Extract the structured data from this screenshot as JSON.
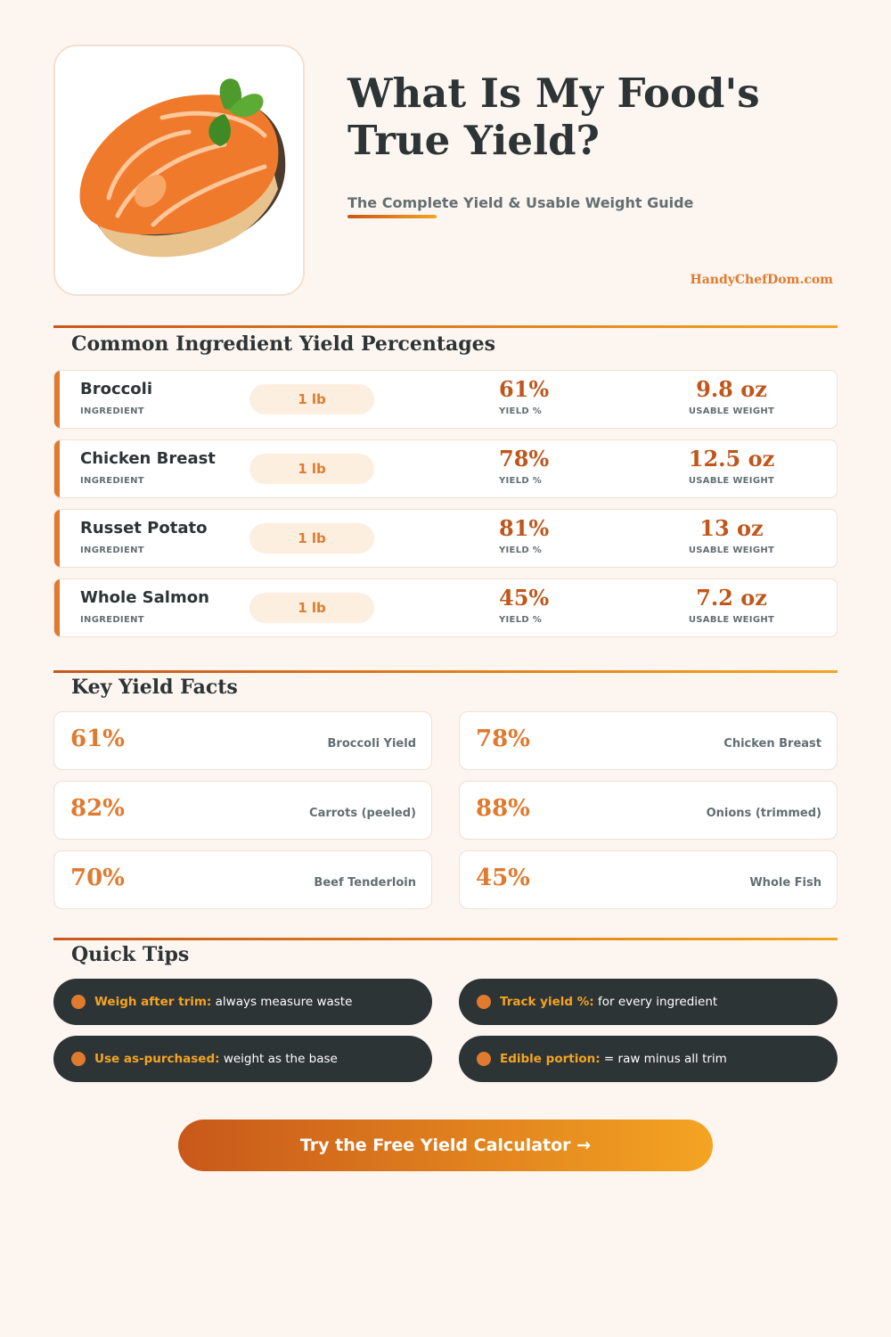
{
  "header": {
    "title": "What Is My Food's True Yield?",
    "subtitle": "The Complete Yield & Usable Weight Guide",
    "site": "HandyChefDom.com"
  },
  "yield_table": {
    "title": "Common Ingredient Yield Percentages",
    "rows": [
      {
        "ingredient": "Broccoli",
        "ingredient_label": "INGREDIENT",
        "amount": "1 lb",
        "yield": "61%",
        "yield_label": "YIELD %",
        "usable_weight": "9.8 oz",
        "usable_weight_label": "USABLE WEIGHT"
      },
      {
        "ingredient": "Chicken Breast",
        "ingredient_label": "INGREDIENT",
        "amount": "1 lb",
        "yield": "78%",
        "yield_label": "YIELD %",
        "usable_weight": "12.5 oz",
        "usable_weight_label": "USABLE WEIGHT"
      },
      {
        "ingredient": "Russet Potato",
        "ingredient_label": "INGREDIENT",
        "amount": "1 lb",
        "yield": "81%",
        "yield_label": "YIELD %",
        "usable_weight": "13 oz",
        "usable_weight_label": "USABLE WEIGHT"
      },
      {
        "ingredient": "Whole Salmon",
        "ingredient_label": "INGREDIENT",
        "amount": "1 lb",
        "yield": "45%",
        "yield_label": "YIELD %",
        "usable_weight": "7.2 oz",
        "usable_weight_label": "USABLE WEIGHT"
      }
    ]
  },
  "facts": {
    "title": "Key Yield Facts",
    "items": [
      {
        "value": "61%",
        "label": "Broccoli Yield"
      },
      {
        "value": "78%",
        "label": "Chicken Breast"
      },
      {
        "value": "82%",
        "label": "Carrots (peeled)"
      },
      {
        "value": "88%",
        "label": "Onions (trimmed)"
      },
      {
        "value": "70%",
        "label": "Beef Tenderloin"
      },
      {
        "value": "45%",
        "label": "Whole Fish"
      }
    ]
  },
  "tips": {
    "title": "Quick Tips",
    "items": [
      {
        "label": "Weigh after trim:",
        "text": "always measure waste"
      },
      {
        "label": "Track yield %:",
        "text": "for every ingredient"
      },
      {
        "label": "Use as-purchased:",
        "text": "weight as the base"
      },
      {
        "label": "Edible portion:",
        "text": "= raw minus all trim"
      }
    ]
  },
  "cta": "Try the Free Yield Calculator →"
}
